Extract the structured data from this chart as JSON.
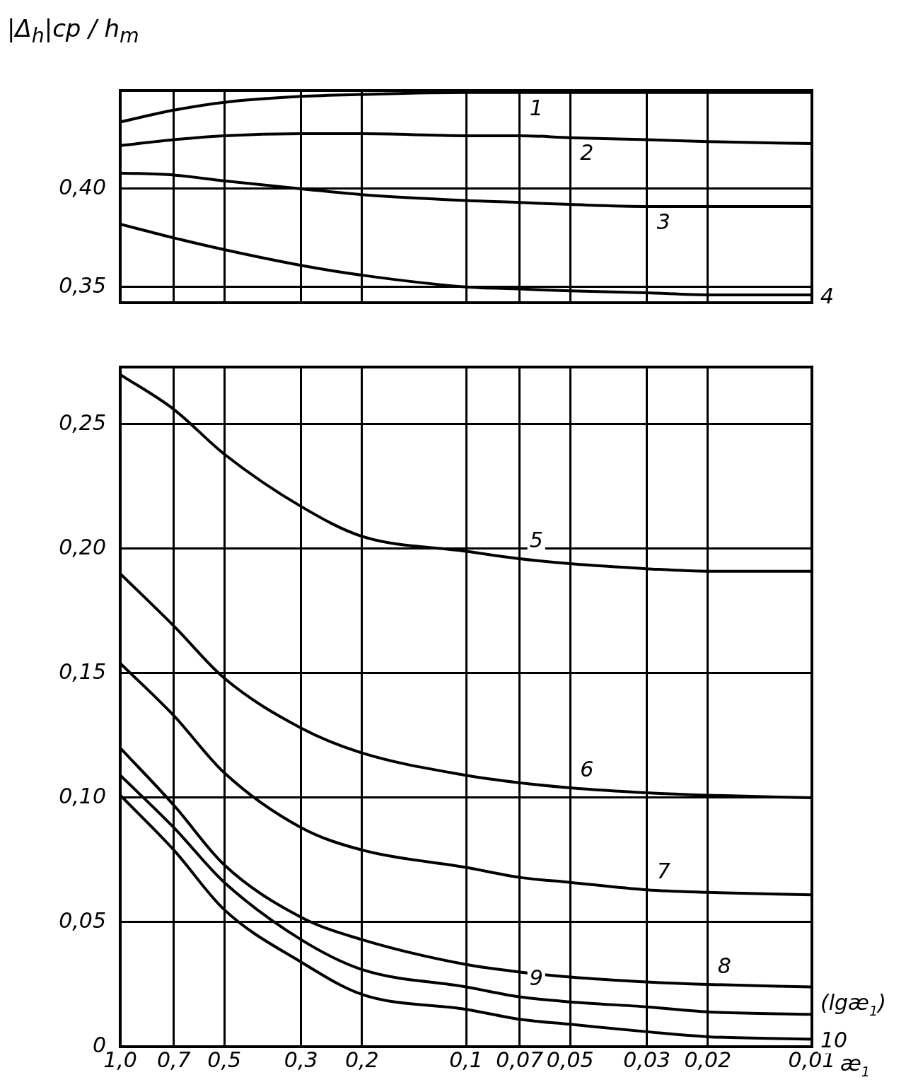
{
  "chart_data": [
    {
      "type": "line",
      "ylabel": "|Δ$_{h}$|ср / h$_{m}$",
      "x": [
        1.0,
        0.7,
        0.5,
        0.3,
        0.2,
        0.1,
        0.07,
        0.05,
        0.03,
        0.02,
        0.01
      ],
      "xlim": [
        1.0,
        0.01
      ],
      "xticks": [
        {
          "value": 1.0,
          "label": null
        },
        {
          "value": 0.7,
          "label": null
        },
        {
          "value": 0.5,
          "label": null
        },
        {
          "value": 0.3,
          "label": null
        },
        {
          "value": 0.2,
          "label": null
        },
        {
          "value": 0.1,
          "label": null
        },
        {
          "value": 0.07,
          "label": null
        },
        {
          "value": 0.05,
          "label": null
        },
        {
          "value": 0.03,
          "label": null
        },
        {
          "value": 0.02,
          "label": null
        },
        {
          "value": 0.01,
          "label": null
        }
      ],
      "log": "x",
      "ylim": [
        0.342,
        0.45
      ],
      "yticks": [
        {
          "value": 0.35,
          "label": "0,35"
        },
        {
          "value": 0.4,
          "label": "0,40"
        }
      ],
      "tick_labels": "y",
      "grid": true,
      "marker": "none",
      "line_style": "solid",
      "series": [
        {
          "name": "1",
          "color": "#000000",
          "values": [
            0.434,
            0.44,
            0.444,
            0.447,
            0.448,
            0.449,
            0.449,
            0.449,
            0.449,
            0.449,
            0.449
          ]
        },
        {
          "name": "2",
          "color": "#000000",
          "values": [
            0.422,
            0.425,
            0.427,
            0.428,
            0.428,
            0.427,
            0.427,
            0.426,
            0.425,
            0.424,
            0.423
          ]
        },
        {
          "name": "3",
          "color": "#000000",
          "values": [
            0.408,
            0.407,
            0.404,
            0.4,
            0.397,
            0.394,
            0.393,
            0.392,
            0.391,
            0.391,
            0.391
          ]
        },
        {
          "name": "4",
          "color": "#000000",
          "values": [
            0.382,
            0.375,
            0.369,
            0.361,
            0.356,
            0.35,
            0.349,
            0.348,
            0.347,
            0.346,
            0.346
          ]
        }
      ]
    },
    {
      "type": "line",
      "xlabel": "æ$_{1}$",
      "annotations": [
        "(lgæ$_{1}$)"
      ],
      "x": [
        1.0,
        0.7,
        0.5,
        0.3,
        0.2,
        0.1,
        0.07,
        0.05,
        0.03,
        0.02,
        0.01
      ],
      "xlim": [
        1.0,
        0.01
      ],
      "xticks": [
        {
          "value": 1.0,
          "label": "1,0"
        },
        {
          "value": 0.7,
          "label": "0,7"
        },
        {
          "value": 0.5,
          "label": "0,5"
        },
        {
          "value": 0.3,
          "label": "0,3"
        },
        {
          "value": 0.2,
          "label": "0,2"
        },
        {
          "value": 0.1,
          "label": "0,1"
        },
        {
          "value": 0.07,
          "label": "0,07"
        },
        {
          "value": 0.05,
          "label": "0,05"
        },
        {
          "value": 0.03,
          "label": "0,03"
        },
        {
          "value": 0.02,
          "label": "0,02"
        },
        {
          "value": 0.01,
          "label": "0,01"
        }
      ],
      "log": "x",
      "ylim": [
        0,
        0.273
      ],
      "yticks": [
        0,
        {
          "value": 0.05,
          "label": "0,05"
        },
        {
          "value": 0.1,
          "label": "0,10"
        },
        {
          "value": 0.15,
          "label": "0,15"
        },
        {
          "value": 0.2,
          "label": "0,20"
        },
        {
          "value": 0.25,
          "label": "0,25"
        }
      ],
      "grid": true,
      "marker": "none",
      "line_style": "solid",
      "series": [
        {
          "name": "5",
          "color": "#000000",
          "values": [
            0.27,
            0.256,
            0.238,
            0.217,
            0.205,
            0.199,
            0.196,
            0.194,
            0.192,
            0.191,
            0.191
          ]
        },
        {
          "name": "6",
          "color": "#000000",
          "values": [
            0.19,
            0.169,
            0.148,
            0.128,
            0.118,
            0.109,
            0.106,
            0.104,
            0.102,
            0.101,
            0.1
          ]
        },
        {
          "name": "7",
          "color": "#000000",
          "values": [
            0.154,
            0.133,
            0.11,
            0.088,
            0.079,
            0.072,
            0.068,
            0.066,
            0.063,
            0.062,
            0.061
          ]
        },
        {
          "name": "8",
          "color": "#000000",
          "values": [
            0.12,
            0.097,
            0.073,
            0.052,
            0.043,
            0.033,
            0.03,
            0.028,
            0.026,
            0.025,
            0.024
          ]
        },
        {
          "name": "9",
          "color": "#000000",
          "values": [
            0.109,
            0.088,
            0.066,
            0.043,
            0.031,
            0.024,
            0.02,
            0.018,
            0.016,
            0.014,
            0.013
          ]
        },
        {
          "name": "10",
          "color": "#000000",
          "values": [
            0.101,
            0.079,
            0.055,
            0.034,
            0.021,
            0.015,
            0.011,
            0.009,
            0.006,
            0.004,
            0.003
          ]
        }
      ]
    }
  ]
}
